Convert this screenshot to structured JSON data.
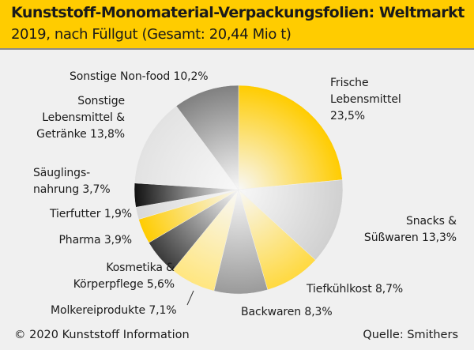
{
  "header": {
    "title": "Kunststoff-Monomaterial-Verpackungsfolien: Weltmarkt",
    "subtitle": "2019, nach Füllgut (Gesamt: 20,44 Mio t)"
  },
  "footer": {
    "copyright": "© 2020 Kunststoff Information",
    "source": "Quelle: Smithers"
  },
  "chart_data": {
    "type": "pie",
    "unit": "%",
    "start": "top, clockwise",
    "slices": [
      {
        "label_lines": [
          "Frische",
          "Lebensmittel",
          "23,5%"
        ],
        "value": 23.5,
        "color": "#ffcc00"
      },
      {
        "label_lines": [
          "Snacks &",
          "Süßwaren 13,3%"
        ],
        "value": 13.3,
        "color": "#d0d0d0"
      },
      {
        "label_lines": [
          "Tiefkühlkost 8,7%"
        ],
        "value": 8.7,
        "color": "#ffd940"
      },
      {
        "label_lines": [
          "Backwaren 8,3%"
        ],
        "value": 8.3,
        "color": "#9a9a9a"
      },
      {
        "label_lines": [
          "Molkereiprodukte 7,1%"
        ],
        "value": 7.1,
        "color": "#ffe680"
      },
      {
        "label_lines": [
          "Kosmetika &",
          "Körperpflege 5,6%"
        ],
        "value": 5.6,
        "color": "#3a3a3a"
      },
      {
        "label_lines": [
          "Pharma 3,9%"
        ],
        "value": 3.9,
        "color": "#ffcc00"
      },
      {
        "label_lines": [
          "Tierfutter 1,9%"
        ],
        "value": 1.9,
        "color": "#d8d8d8"
      },
      {
        "label_lines": [
          "Säuglings-",
          "nahrung 3,7%"
        ],
        "value": 3.7,
        "color": "#111111"
      },
      {
        "label_lines": [
          "Sonstige",
          "Lebensmittel &",
          "Getränke 13,8%"
        ],
        "value": 13.8,
        "color": "#e2e2e2"
      },
      {
        "label_lines": [
          "Sonstige Non-food 10,2%"
        ],
        "value": 10.2,
        "color": "#808080"
      }
    ]
  }
}
